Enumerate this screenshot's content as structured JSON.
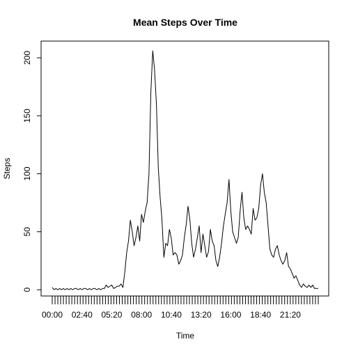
{
  "chart_data": {
    "type": "line",
    "title": "Mean Steps Over Time",
    "xlabel": "Time",
    "ylabel": "Steps",
    "ylim": [
      0,
      210
    ],
    "y_ticks": [
      0,
      50,
      100,
      150,
      200
    ],
    "x_tick_count": 96,
    "x_tick_labels": [
      {
        "index": 0,
        "label": "00:00"
      },
      {
        "index": 16,
        "label": "02:40"
      },
      {
        "index": 32,
        "label": "05:20"
      },
      {
        "index": 48,
        "label": "08:00"
      },
      {
        "index": 64,
        "label": "10:40"
      },
      {
        "index": 80,
        "label": "13:20"
      },
      {
        "index": 96,
        "label": "16:00"
      },
      {
        "index": 112,
        "label": "18:40"
      },
      {
        "index": 128,
        "label": "21:20"
      }
    ],
    "grid": false,
    "legend": "none",
    "series": [
      {
        "color": "#000000",
        "x": [
          0,
          1,
          2,
          3,
          4,
          5,
          6,
          7,
          8,
          9,
          10,
          11,
          12,
          13,
          14,
          15,
          16,
          17,
          18,
          19,
          20,
          21,
          22,
          23,
          24,
          25,
          26,
          27,
          28,
          29,
          30,
          31,
          32,
          33,
          34,
          35,
          36,
          37,
          38,
          39,
          40,
          41,
          42,
          43,
          44,
          45,
          46,
          47,
          48,
          49,
          50,
          51,
          52,
          53,
          54,
          55,
          56,
          57,
          58,
          59,
          60,
          61,
          62,
          63,
          64,
          65,
          66,
          67,
          68,
          69,
          70,
          71,
          72,
          73,
          74,
          75,
          76,
          77,
          78,
          79,
          80,
          81,
          82,
          83,
          84,
          85,
          86,
          87,
          88,
          89,
          90,
          91,
          92,
          93,
          94,
          95,
          96,
          97,
          98,
          99,
          100,
          101,
          102,
          103,
          104,
          105,
          106,
          107,
          108,
          109,
          110,
          111,
          112,
          113,
          114,
          115,
          116,
          117,
          118,
          119,
          120,
          121,
          122,
          123,
          124,
          125,
          126,
          127,
          128,
          129,
          130,
          131,
          132,
          133,
          134,
          135,
          136,
          137,
          138,
          139,
          140,
          141,
          142,
          143
        ],
        "values": [
          2,
          0,
          1,
          0,
          1,
          0,
          1,
          0,
          1,
          0,
          1,
          0,
          1,
          1,
          0,
          1,
          0,
          1,
          1,
          0,
          1,
          0,
          1,
          1,
          0,
          1,
          0,
          1,
          1,
          4,
          2,
          3,
          4,
          1,
          2,
          3,
          3,
          5,
          2,
          15,
          32,
          42,
          60,
          50,
          38,
          45,
          55,
          42,
          65,
          58,
          68,
          75,
          100,
          170,
          206,
          190,
          160,
          105,
          80,
          60,
          28,
          40,
          38,
          52,
          44,
          30,
          32,
          30,
          22,
          25,
          30,
          45,
          56,
          72,
          60,
          40,
          28,
          35,
          45,
          55,
          32,
          48,
          38,
          28,
          33,
          52,
          42,
          38,
          25,
          20,
          28,
          40,
          55,
          65,
          75,
          95,
          68,
          50,
          45,
          40,
          45,
          68,
          84,
          62,
          52,
          55,
          52,
          48,
          70,
          60,
          62,
          70,
          90,
          100,
          84,
          75,
          55,
          35,
          30,
          28,
          35,
          38,
          30,
          25,
          22,
          25,
          32,
          20,
          18,
          14,
          10,
          12,
          8,
          4,
          2,
          5,
          3,
          2,
          4,
          2,
          4,
          1,
          1,
          1
        ]
      }
    ]
  }
}
